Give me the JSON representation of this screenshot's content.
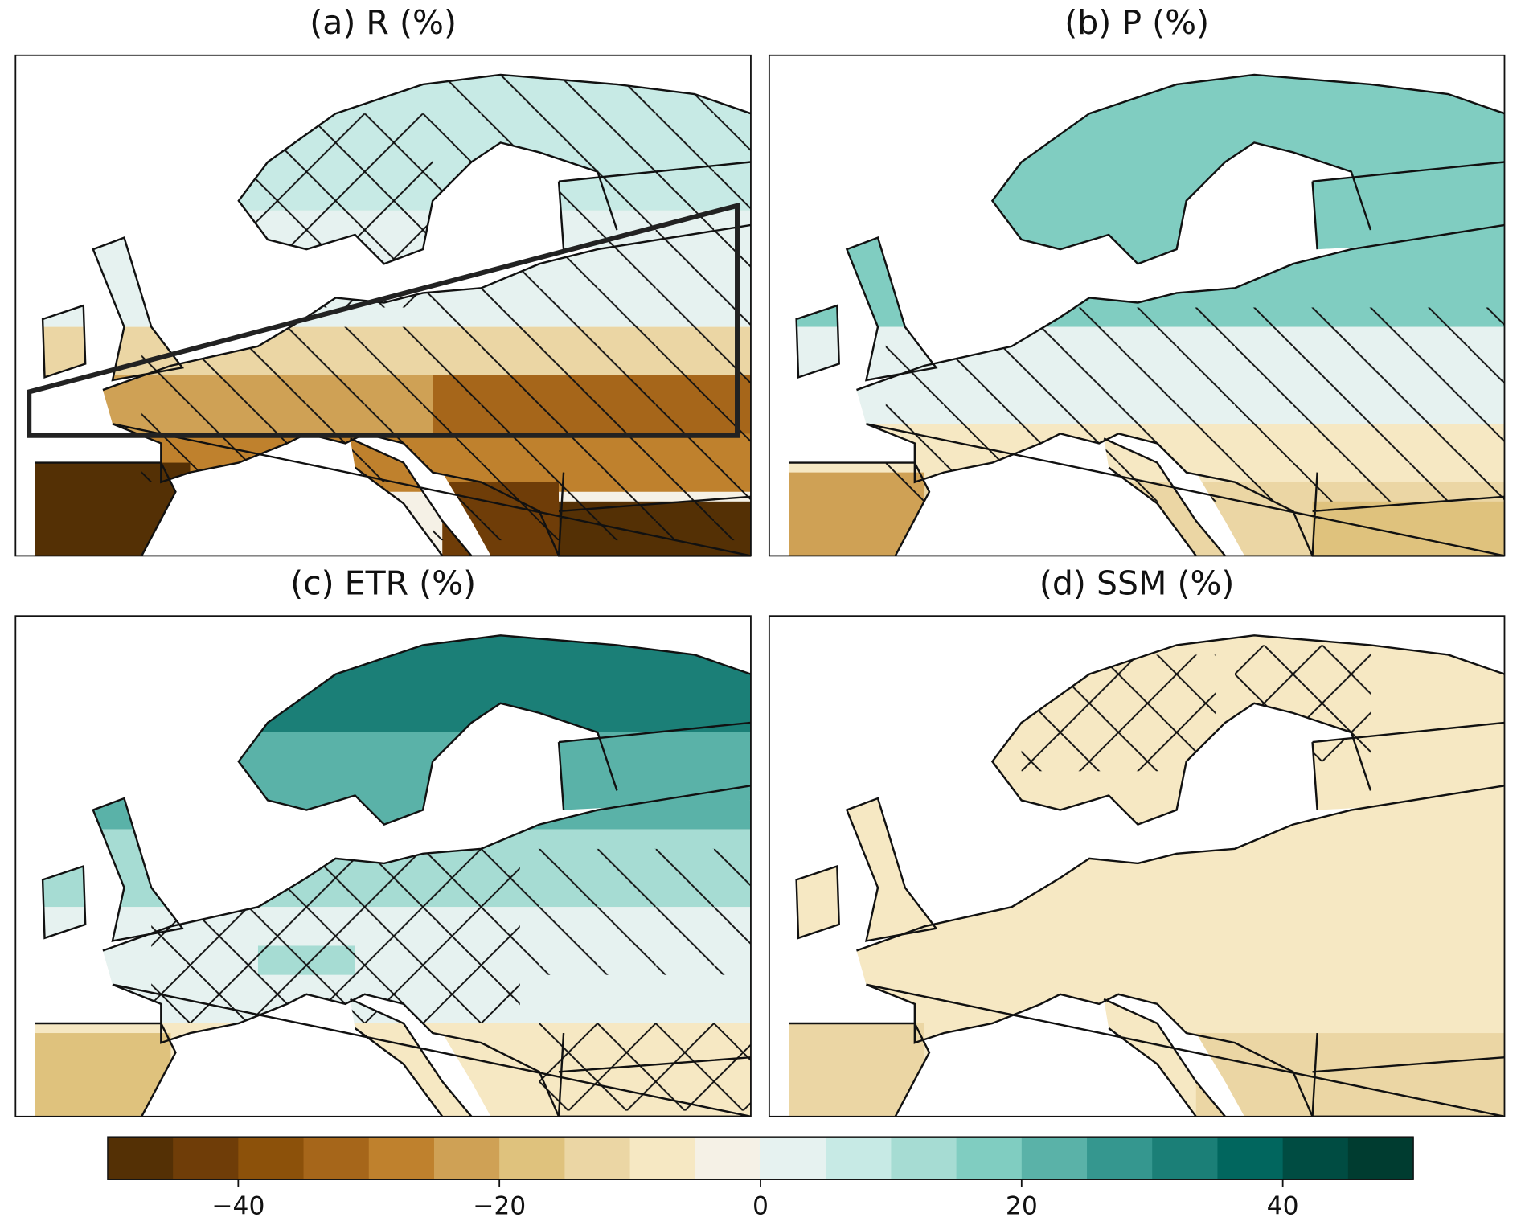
{
  "panels": [
    {
      "title": "(a) R (%)"
    },
    {
      "title": "(b) P (%)"
    },
    {
      "title": "(c) ETR (%)"
    },
    {
      "title": "(d) SSM (%)"
    }
  ],
  "colorbar": {
    "clim": [
      -50,
      50
    ],
    "colors": [
      "#543005",
      "#6f3d08",
      "#8c510a",
      "#a6661a",
      "#bf812d",
      "#cfa155",
      "#dfc27d",
      "#ebd6a4",
      "#f6e8c3",
      "#f5f1e6",
      "#e6f2f0",
      "#c7eae5",
      "#a6dcd3",
      "#80cdc1",
      "#5ab2a8",
      "#35978f",
      "#1b7f77",
      "#01665e",
      "#004c42",
      "#003c30"
    ],
    "ticks": [
      {
        "value": -40,
        "label": "−40"
      },
      {
        "value": -20,
        "label": "−20"
      },
      0,
      20,
      40
    ]
  }
}
